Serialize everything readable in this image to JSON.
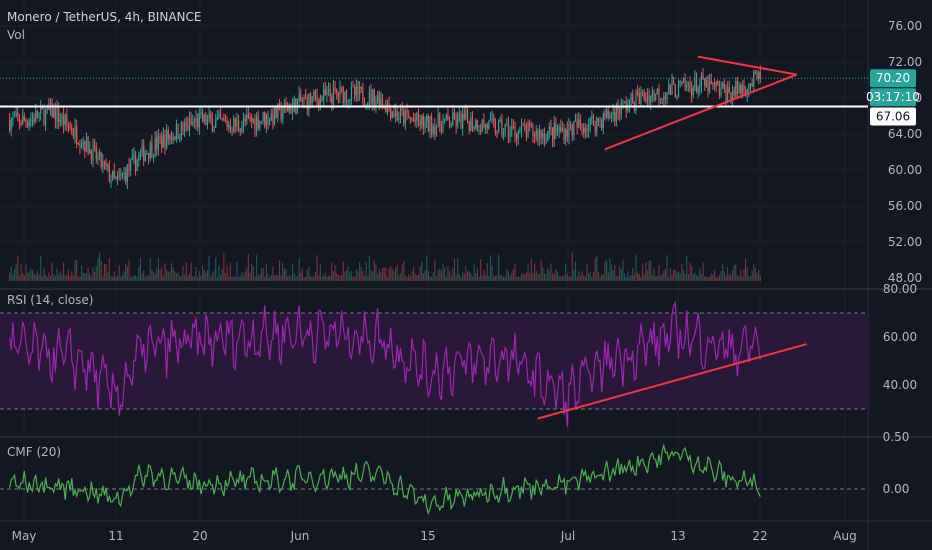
{
  "header": {
    "symbol_title": "Monero / TetherUS, 4h, BINANCE",
    "volume_label": "Vol"
  },
  "colors": {
    "background": "#131722",
    "grid": "#1e222d",
    "up_candle": "#26a69a",
    "down_candle": "#ef5350",
    "rsi_line": "#9c27b0",
    "rsi_band_fill": "#2a1838",
    "cmf_line": "#4caf50",
    "trendline": "#f23645",
    "support_line": "#ffffff",
    "last_price_tag": "#26a69a",
    "axis_text": "#b2b5be"
  },
  "price_axis": {
    "ticks": [
      "76.00",
      "72.00",
      "68.00",
      "64.00",
      "60.00",
      "56.00",
      "52.00",
      "48.00"
    ],
    "last_price": "70.20",
    "countdown": "03:17:10",
    "support_value": "67.06"
  },
  "time_axis": {
    "ticks": [
      "May",
      "11",
      "20",
      "Jun",
      "15",
      "Jul",
      "13",
      "22",
      "Aug"
    ]
  },
  "rsi_pane": {
    "label": "RSI (14, close)",
    "ticks": [
      "80.00",
      "60.00",
      "40.00"
    ]
  },
  "cmf_pane": {
    "label": "CMF (20)",
    "ticks": [
      "0.50",
      "0.00"
    ]
  },
  "chart_data": [
    {
      "type": "candlestick",
      "title": "Monero / TetherUS, 4h, BINANCE",
      "x_ticks": [
        "May",
        "11",
        "20",
        "Jun",
        "15",
        "Jul",
        "13",
        "22",
        "Aug"
      ],
      "ylim": [
        47,
        78
      ],
      "close_path": [
        [
          "May",
          65.5
        ],
        [
          "May 4",
          66.5
        ],
        [
          "May 7",
          63.5
        ],
        [
          "11",
          58.5
        ],
        [
          "May 14",
          62.0
        ],
        [
          "May 17",
          64.0
        ],
        [
          "20",
          65.5
        ],
        [
          "May 24",
          65.0
        ],
        [
          "May 28",
          66.0
        ],
        [
          "Jun",
          67.5
        ],
        [
          "Jun 5",
          68.5
        ],
        [
          "Jun 9",
          68.0
        ],
        [
          "Jun 11",
          66.0
        ],
        [
          "15",
          65.0
        ],
        [
          "Jun 19",
          65.5
        ],
        [
          "Jun 23",
          64.5
        ],
        [
          "Jun 27",
          64.0
        ],
        [
          "Jul",
          64.5
        ],
        [
          "Jul 5",
          65.5
        ],
        [
          "Jul 9",
          68.0
        ],
        [
          "13",
          69.0
        ],
        [
          "Jul 16",
          69.5
        ],
        [
          "Jul 19",
          68.5
        ],
        [
          "22",
          70.2
        ]
      ],
      "last_price": 70.2,
      "support_level": 67.06,
      "annotations": [
        "symmetrical triangle drawn on recent price action",
        "horizontal support at 67.06"
      ]
    },
    {
      "type": "line",
      "title": "RSI (14, close)",
      "ylim": [
        20,
        80
      ],
      "bands": [
        30,
        70
      ],
      "path": [
        [
          "May",
          55
        ],
        [
          "May 7",
          50
        ],
        [
          "11",
          35
        ],
        [
          "May 14",
          55
        ],
        [
          "20",
          58
        ],
        [
          "Jun",
          62
        ],
        [
          "Jun 9",
          60
        ],
        [
          "15",
          45
        ],
        [
          "Jun 23",
          52
        ],
        [
          "Jul",
          35
        ],
        [
          "Jul 5",
          48
        ],
        [
          "13",
          62
        ],
        [
          "Jul 19",
          55
        ],
        [
          "22",
          57
        ]
      ],
      "annotations": [
        "rising trendline from early July low"
      ]
    },
    {
      "type": "line",
      "title": "CMF (20)",
      "ylim": [
        -0.3,
        0.5
      ],
      "path": [
        [
          "May",
          0.05
        ],
        [
          "May 7",
          0.0
        ],
        [
          "11",
          -0.1
        ],
        [
          "May 14",
          0.15
        ],
        [
          "20",
          0.05
        ],
        [
          "Jun",
          0.1
        ],
        [
          "Jun 9",
          0.15
        ],
        [
          "15",
          -0.15
        ],
        [
          "Jun 23",
          0.0
        ],
        [
          "Jul",
          0.05
        ],
        [
          "13",
          0.35
        ],
        [
          "Jul 19",
          0.1
        ],
        [
          "22",
          0.05
        ]
      ]
    }
  ]
}
